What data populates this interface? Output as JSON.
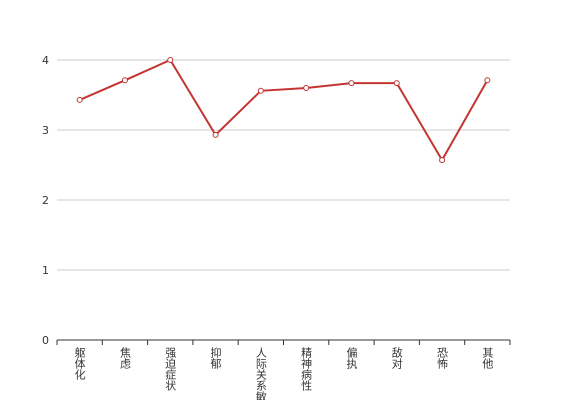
{
  "chart_data": {
    "type": "line",
    "categories": [
      "躯体化",
      "焦虑",
      "强迫症状",
      "抑郁",
      "人际关系敏感",
      "精神病性",
      "偏执",
      "敌对",
      "恐怖",
      "其他"
    ],
    "series": [
      {
        "color": "#c23531",
        "values": [
          3.43,
          3.71,
          4.0,
          2.93,
          3.56,
          3.6,
          3.67,
          3.67,
          2.57,
          3.71
        ]
      }
    ],
    "ylim": [
      0,
      4
    ],
    "yticks": [
      0,
      1,
      2,
      3,
      4
    ],
    "grid": true
  }
}
